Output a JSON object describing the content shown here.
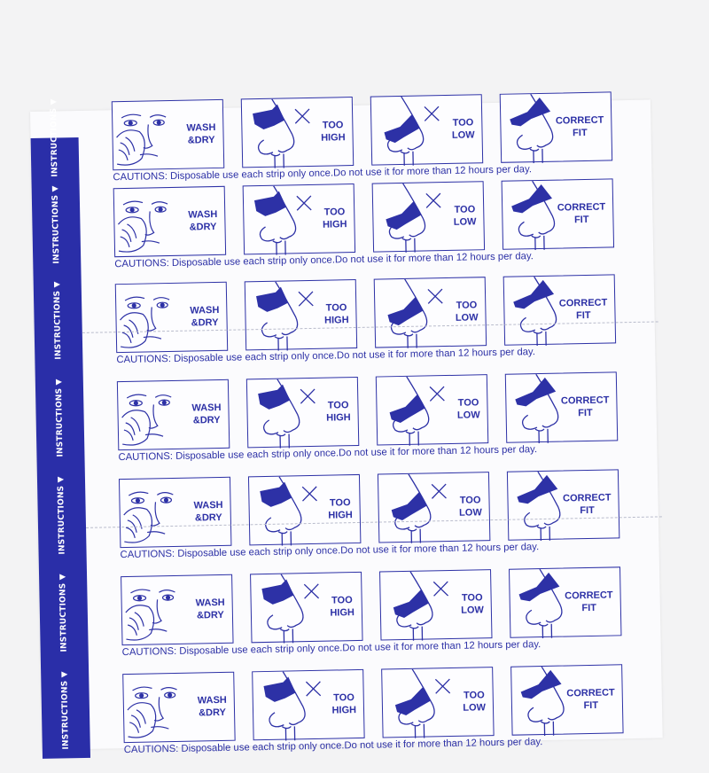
{
  "side_label": "INSTRUCTIONS ▼",
  "panels": [
    {
      "label_1": "WASH",
      "label_2": "&DRY",
      "icon": "face-washing-icon"
    },
    {
      "label_1": "TOO",
      "label_2": "HIGH",
      "icon": "nose-strip-too-high-icon"
    },
    {
      "label_1": "TOO",
      "label_2": "LOW",
      "icon": "nose-strip-too-low-icon"
    },
    {
      "label_1": "CORRECT",
      "label_2": "FIT",
      "icon": "nose-strip-correct-fit-icon"
    }
  ],
  "caution": "CAUTIONS: Disposable use each strip only once.Do not use it for more than 12 hours per day.",
  "colors": {
    "ink": "#2d31a6",
    "band": "#2a2ea8",
    "paper": "#fbfbfd"
  }
}
